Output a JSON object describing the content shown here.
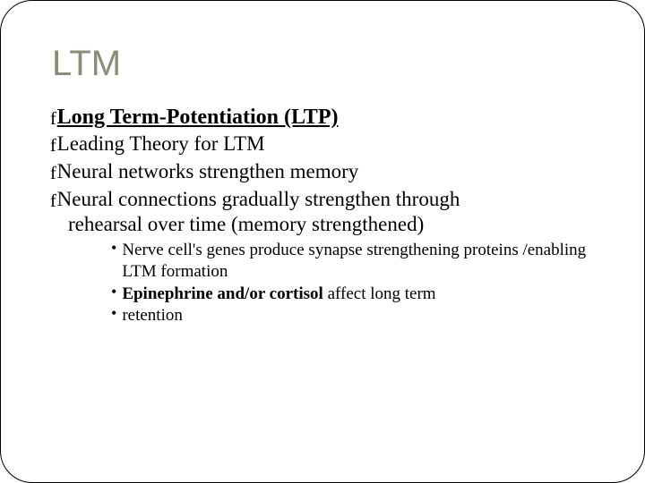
{
  "slide": {
    "title": "LTM",
    "title_color": "#8b8b7a",
    "title_fontsize": 40,
    "background_color": "#ffffff",
    "border_color": "#000000",
    "border_radius": 36
  },
  "bullets": {
    "swirl_glyph": "f",
    "dot_glyph": "•"
  },
  "content": {
    "l1": {
      "text": "Long Term-Potentiation (LTP)",
      "underline": true,
      "bold": true,
      "fontsize": 24
    },
    "l2": [
      {
        "text": "Leading Theory for LTM"
      },
      {
        "text": "Neural networks strengthen memory"
      },
      {
        "text": "Neural connections gradually strengthen through",
        "cont": "rehearsal over time (memory strengthened)"
      }
    ],
    "l2_fontsize": 23,
    "l3": [
      {
        "pre": "Nerve cell's genes produce synapse strengthening proteins /enabling LTM formation",
        "bold": "",
        "post": ""
      },
      {
        "pre": "",
        "bold": "Epinephrine and/or cortisol",
        "post": " affect long term"
      },
      {
        "pre": "retention",
        "bold": "",
        "post": ""
      }
    ],
    "l3_fontsize": 19
  }
}
